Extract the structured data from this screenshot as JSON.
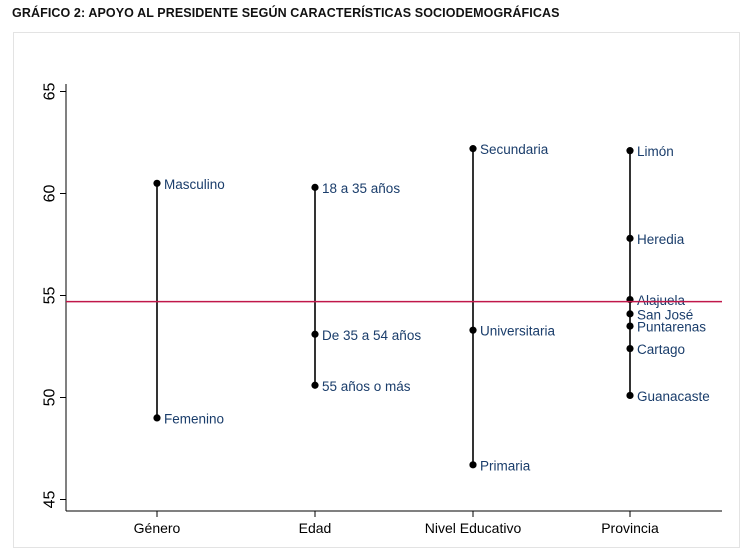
{
  "title": "GRÁFICO 2: APOYO AL PRESIDENTE SEGÚN CARACTERÍSTICAS SOCIODEMOGRÁFICAS",
  "colors": {
    "axis": "#000000",
    "label": "#1a3d6b",
    "reference_line": "#c0174a",
    "frame": "#e3e3e3"
  },
  "chart_data": {
    "type": "scatter",
    "title": "GRÁFICO 2: APOYO AL PRESIDENTE SEGÚN CARACTERÍSTICAS SOCIODEMOGRÁFICAS",
    "xlabel": "",
    "ylabel": "",
    "categories": [
      "Género",
      "Edad",
      "Nivel Educativo",
      "Provincia"
    ],
    "ylim": [
      44,
      65.8
    ],
    "yticks": [
      45,
      50,
      55,
      60,
      65
    ],
    "ytick_labels": [
      "45",
      "50",
      "55",
      "60",
      "65"
    ],
    "reference_line": 54.7,
    "grid": false,
    "groups": [
      {
        "category": "Género",
        "points": [
          {
            "label": "Masculino",
            "value": 60.5
          },
          {
            "label": "Femenino",
            "value": 49.0
          }
        ]
      },
      {
        "category": "Edad",
        "points": [
          {
            "label": "18 a 35 años",
            "value": 60.3
          },
          {
            "label": "De 35 a 54 años",
            "value": 53.1
          },
          {
            "label": "55 años o más",
            "value": 50.6
          }
        ]
      },
      {
        "category": "Nivel Educativo",
        "points": [
          {
            "label": "Secundaria",
            "value": 62.2
          },
          {
            "label": "Universitaria",
            "value": 53.3
          },
          {
            "label": "Primaria",
            "value": 46.7
          }
        ]
      },
      {
        "category": "Provincia",
        "points": [
          {
            "label": "Limón",
            "value": 62.1
          },
          {
            "label": "Heredia",
            "value": 57.8
          },
          {
            "label": "Alajuela",
            "value": 54.8
          },
          {
            "label": "San José",
            "value": 54.1
          },
          {
            "label": "Puntarenas",
            "value": 53.5
          },
          {
            "label": "Cartago",
            "value": 52.4
          },
          {
            "label": "Guanacaste",
            "value": 50.1
          }
        ]
      }
    ]
  }
}
